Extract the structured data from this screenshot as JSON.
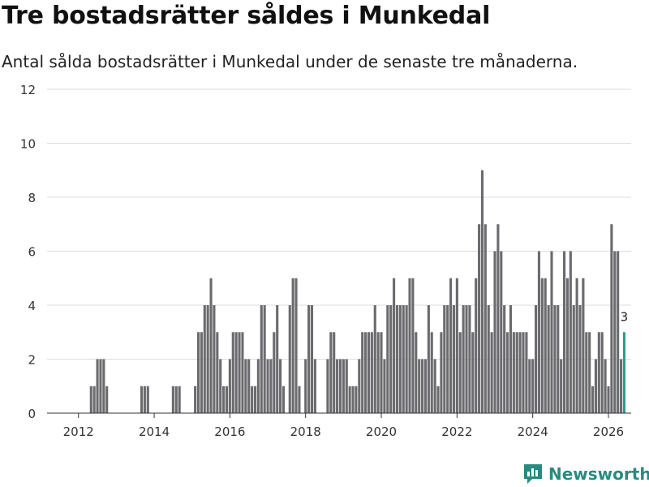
{
  "title": "Tre bostadsrätter såldes i Munkedal",
  "subtitle": "Antal sålda bostadsrätter i Munkedal under de senaste tre månaderna.",
  "brand": {
    "name": "Newsworthy",
    "color": "#2a8a80"
  },
  "colors": {
    "bar": "#6b6b6f",
    "highlight": "#2a9d8f",
    "grid": "#dddddd",
    "axis": "#333333"
  },
  "chart_data": {
    "type": "bar",
    "title": "Tre bostadsrätter såldes i Munkedal",
    "xlabel": "",
    "ylabel": "",
    "ylim": [
      0,
      12
    ],
    "xlim": [
      2011.17,
      2026.6
    ],
    "yticks": [
      0,
      2,
      4,
      6,
      8,
      10,
      12
    ],
    "xticks": [
      2012,
      2014,
      2016,
      2018,
      2020,
      2022,
      2024,
      2026
    ],
    "start_year": 2011,
    "start_month": 1,
    "values": [
      0,
      0,
      0,
      0,
      0,
      0,
      0,
      0,
      0,
      0,
      0,
      0,
      0,
      0,
      0,
      0,
      1,
      1,
      2,
      2,
      2,
      1,
      0,
      0,
      0,
      0,
      0,
      0,
      0,
      0,
      0,
      0,
      1,
      1,
      1,
      0,
      0,
      0,
      0,
      0,
      0,
      0,
      1,
      1,
      1,
      0,
      0,
      0,
      0,
      1,
      3,
      3,
      4,
      4,
      5,
      4,
      3,
      2,
      1,
      1,
      2,
      3,
      3,
      3,
      3,
      2,
      2,
      1,
      1,
      2,
      4,
      4,
      2,
      2,
      3,
      4,
      2,
      1,
      0,
      4,
      5,
      5,
      1,
      0,
      2,
      4,
      4,
      2,
      0,
      0,
      0,
      2,
      3,
      3,
      2,
      2,
      2,
      2,
      1,
      1,
      1,
      2,
      3,
      3,
      3,
      3,
      4,
      3,
      3,
      2,
      4,
      4,
      5,
      4,
      4,
      4,
      4,
      5,
      5,
      3,
      2,
      2,
      2,
      4,
      3,
      2,
      1,
      3,
      4,
      4,
      5,
      4,
      5,
      3,
      4,
      4,
      4,
      3,
      5,
      7,
      9,
      7,
      4,
      3,
      6,
      7,
      6,
      4,
      3,
      4,
      3,
      3,
      3,
      3,
      3,
      2,
      2,
      4,
      6,
      5,
      5,
      4,
      6,
      4,
      4,
      2,
      6,
      5,
      6,
      4,
      5,
      4,
      5,
      3,
      3,
      1,
      2,
      3,
      3,
      2,
      1,
      7,
      6,
      6,
      2,
      3
    ],
    "highlight_last": true,
    "annotation": {
      "text": "3"
    }
  }
}
